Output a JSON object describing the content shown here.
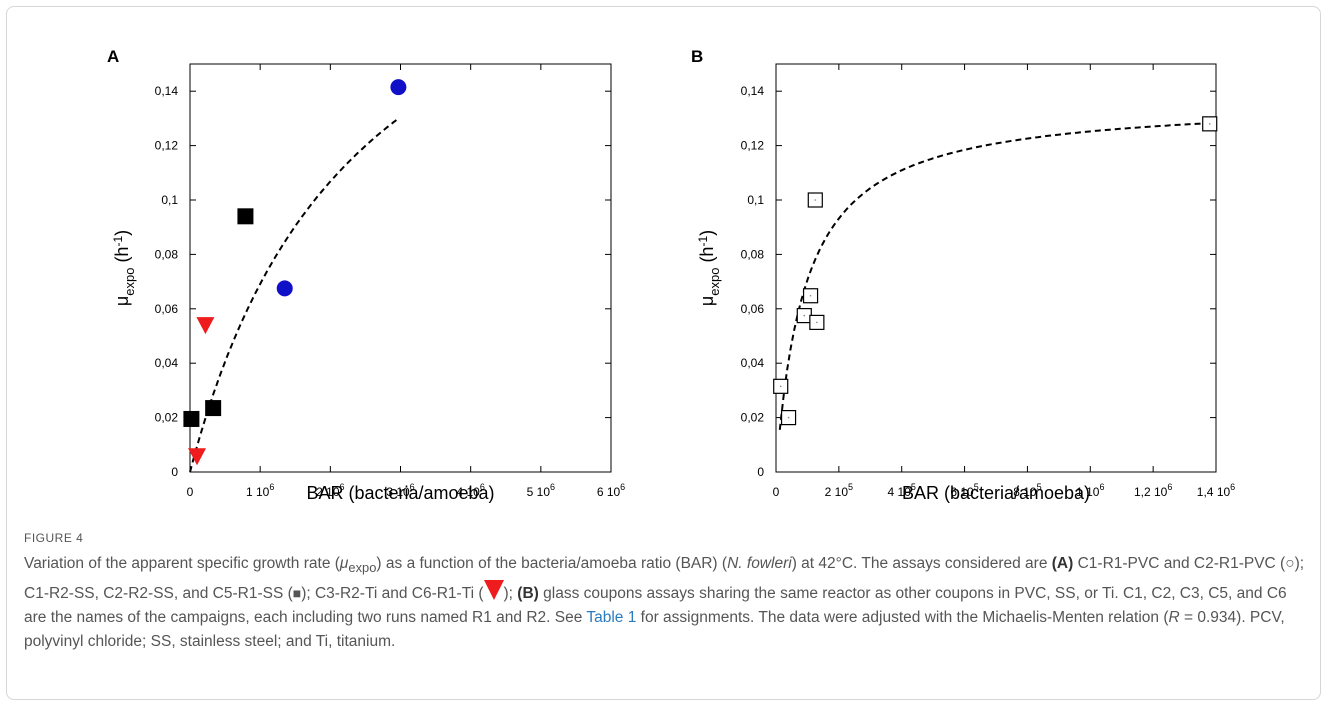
{
  "chart_data": [
    {
      "panel": "A",
      "type": "scatter",
      "xlabel": "BAR (bacteria/amoeba)",
      "ylabel": "μ_expo (h^-1)",
      "xlim": [
        0,
        6000000
      ],
      "ylim": [
        0,
        0.15
      ],
      "x_ticks": [
        0,
        1000000,
        2000000,
        3000000,
        4000000,
        5000000,
        6000000
      ],
      "x_tick_labels": [
        "0",
        "1 10^6",
        "2 10^6",
        "3 10^6",
        "4 10^6",
        "5 10^6",
        "6 10^6"
      ],
      "y_ticks": [
        0,
        0.02,
        0.04,
        0.06,
        0.08,
        0.1,
        0.12,
        0.14
      ],
      "y_tick_labels": [
        "0",
        "0,02",
        "0,04",
        "0,06",
        "0,08",
        "0,1",
        "0,12",
        "0,14"
      ],
      "series": [
        {
          "marker": "circle",
          "color": "#1010c8",
          "points": [
            [
              1350000,
              0.0675
            ],
            [
              2970000,
              0.1415
            ]
          ]
        },
        {
          "marker": "square",
          "color": "#000000",
          "points": [
            [
              20000,
              0.0195
            ],
            [
              330000,
              0.0235
            ],
            [
              790000,
              0.094
            ]
          ]
        },
        {
          "marker": "triangle-down",
          "color": "#ee1c1c",
          "points": [
            [
              220000,
              0.054
            ],
            [
              100000,
              0.0058
            ]
          ]
        }
      ],
      "fit": {
        "style": "dashed",
        "model": "Michaelis-Menten",
        "mu_max": 0.235,
        "K": 2400000,
        "x_range": [
          0,
          2950000
        ]
      }
    },
    {
      "panel": "B",
      "type": "scatter",
      "xlabel": "BAR (bacteria/amoeba)",
      "ylabel": "μ_expo (h^-1)",
      "xlim": [
        0,
        1400000
      ],
      "ylim": [
        0,
        0.15
      ],
      "x_ticks": [
        0,
        200000,
        400000,
        600000,
        800000,
        1000000,
        1200000,
        1400000
      ],
      "x_tick_labels": [
        "0",
        "2 10^5",
        "4 10^5",
        "6 10^5",
        "8 10^5",
        "1 10^6",
        "1,2 10^6",
        "1,4 10^6"
      ],
      "y_ticks": [
        0,
        0.02,
        0.04,
        0.06,
        0.08,
        0.1,
        0.12,
        0.14
      ],
      "y_tick_labels": [
        "0",
        "0,02",
        "0,04",
        "0,06",
        "0,08",
        "0,1",
        "0,12",
        "0,14"
      ],
      "series": [
        {
          "marker": "open-square",
          "color": "#000000",
          "points": [
            [
              15000,
              0.0315
            ],
            [
              40000,
              0.02
            ],
            [
              90000,
              0.0575
            ],
            [
              110000,
              0.0648
            ],
            [
              125000,
              0.1
            ],
            [
              130000,
              0.055
            ],
            [
              1380000,
              0.128
            ]
          ]
        }
      ],
      "fit": {
        "style": "dashed",
        "model": "Michaelis-Menten",
        "mu_max": 0.137,
        "K": 94000,
        "x_range": [
          12000,
          1380000
        ]
      }
    }
  ],
  "caption": {
    "figure_label": "FIGURE 4",
    "t1": "Variation of the apparent specific growth rate (",
    "mu": "μ",
    "expo": "expo",
    "t2": ") as a function of the bacteria/amoeba ratio (BAR) (",
    "species": "N. fowleri",
    "t3": ") at 42°C. The assays considered are",
    "A": "(A)",
    "t4": " C1-R1-PVC and C2-R1-PVC (",
    "circle": "○",
    "t5": "); C1-R2-SS, C2-R2-SS, and C5-R1-SS (",
    "square": "■",
    "t6": "); C3-R2-Ti and C6-R1-Ti (",
    "t7": "); ",
    "B": "(B)",
    "t8": " glass coupons assays sharing the same reactor as other coupons in PVC, SS, or Ti. C1, C2, C3, C5, and C6 are the names of the campaigns, each including two runs named R1 and R2. See ",
    "table_link": "Table 1",
    "t9": " for assignments. The data were adjusted with the Michaelis-Menten relation (",
    "R_sym": "R",
    "t10": " = 0.934). PCV, polyvinyl chloride; SS, stainless steel; and Ti, titanium."
  }
}
